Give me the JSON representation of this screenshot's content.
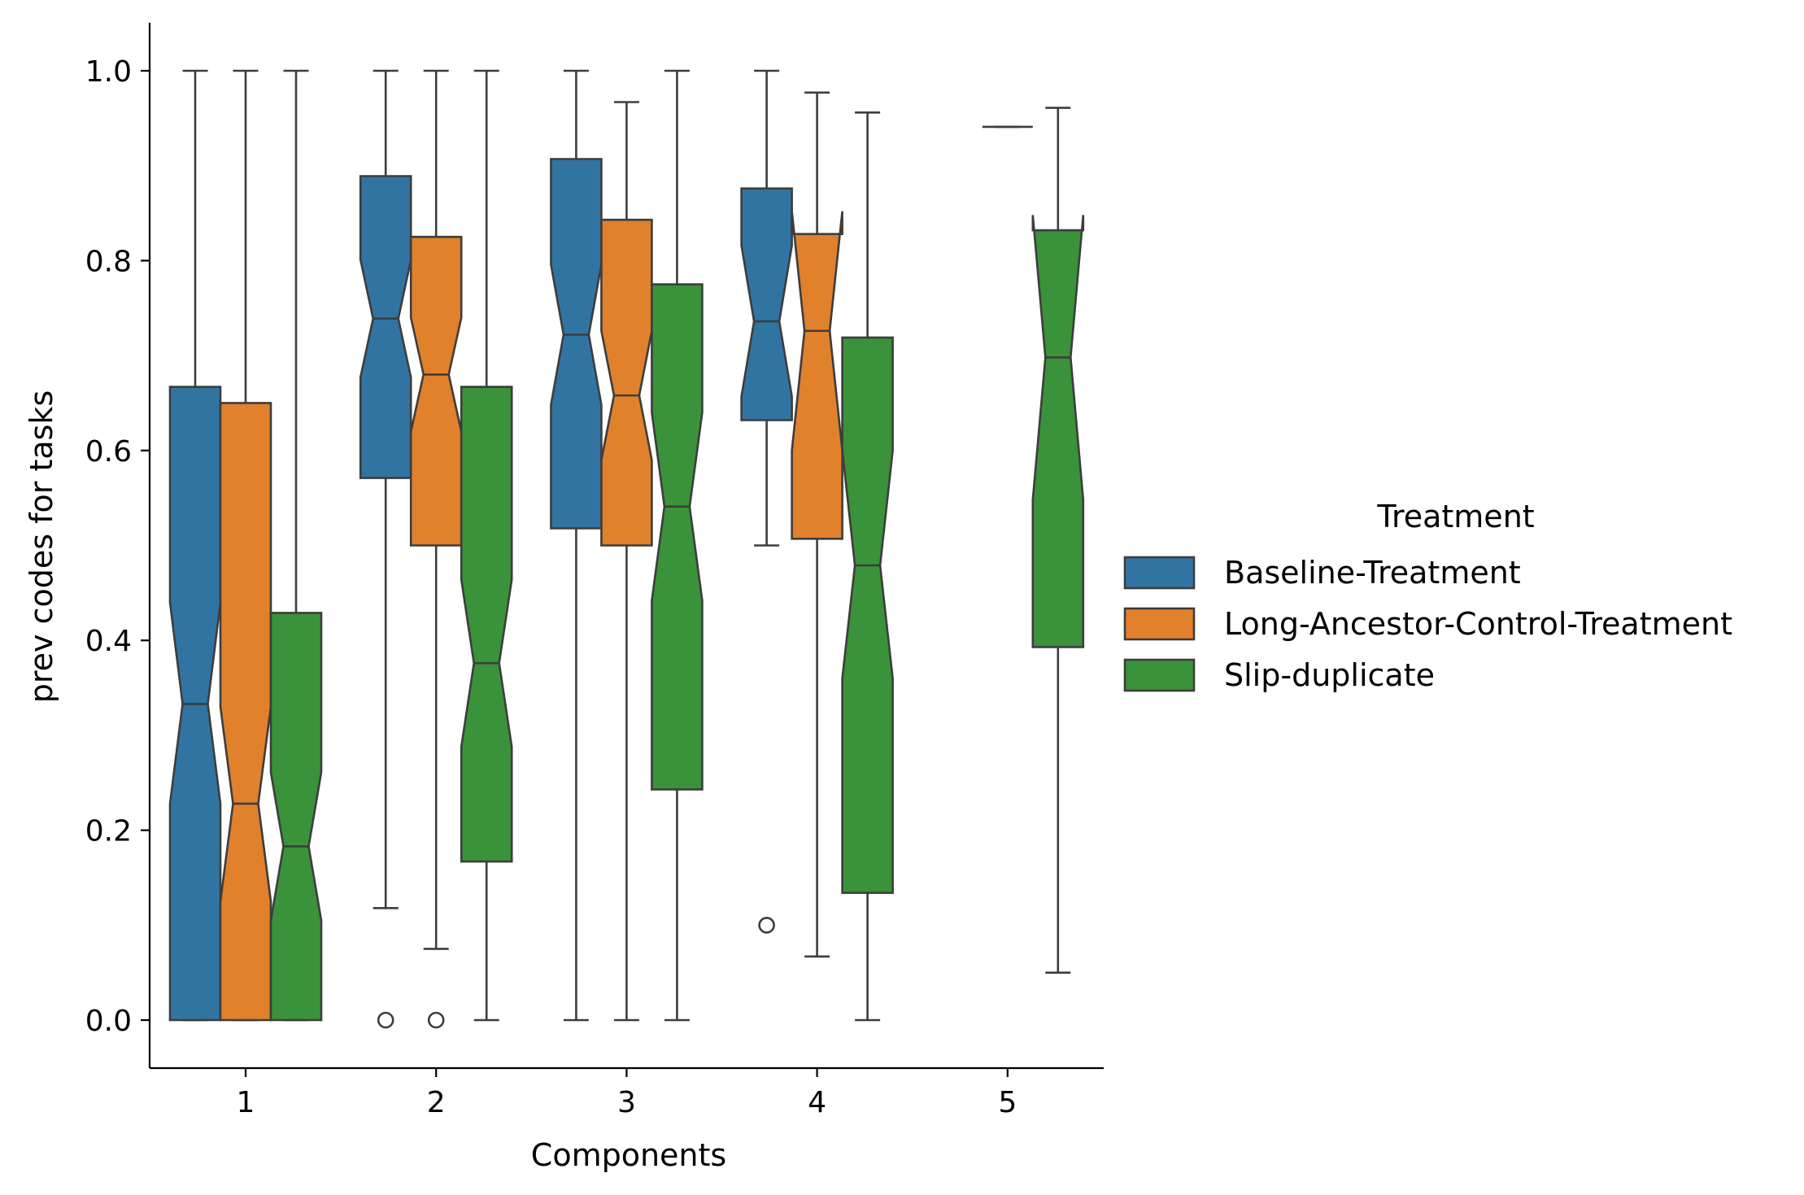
{
  "chart_data": {
    "type": "boxplot",
    "notched": true,
    "xlabel": "Components",
    "ylabel": "prev codes for tasks",
    "categories": [
      "1",
      "2",
      "3",
      "4",
      "5"
    ],
    "ylim": [
      -0.05,
      1.05
    ],
    "yticks": [
      0.0,
      0.2,
      0.4,
      0.6,
      0.8,
      1.0
    ],
    "ytick_labels": [
      "0.0",
      "0.2",
      "0.4",
      "0.6",
      "0.8",
      "1.0"
    ],
    "grid": false,
    "legend": {
      "title": "Treatment",
      "placement": "right"
    },
    "series": [
      {
        "name": "Baseline-Treatment",
        "color": "#3274a1",
        "boxes": [
          {
            "category": "1",
            "whislo": 0.0,
            "q1": 0.0,
            "med": 0.333,
            "q3": 0.667,
            "whishi": 1.0,
            "notch_lo": 0.228,
            "notch_hi": 0.44,
            "outliers": []
          },
          {
            "category": "2",
            "whislo": 0.118,
            "q1": 0.571,
            "med": 0.739,
            "q3": 0.889,
            "whishi": 1.0,
            "notch_lo": 0.677,
            "notch_hi": 0.801,
            "outliers": [
              0.0
            ]
          },
          {
            "category": "3",
            "whislo": 0.0,
            "q1": 0.518,
            "med": 0.722,
            "q3": 0.907,
            "whishi": 1.0,
            "notch_lo": 0.648,
            "notch_hi": 0.796,
            "outliers": []
          },
          {
            "category": "4",
            "whislo": 0.5,
            "q1": 0.632,
            "med": 0.736,
            "q3": 0.876,
            "whishi": 1.0,
            "notch_lo": 0.657,
            "notch_hi": 0.816,
            "outliers": [
              0.1
            ]
          },
          {
            "category": "5",
            "empty": true
          }
        ]
      },
      {
        "name": "Long-Ancestor-Control-Treatment",
        "color": "#e1812c",
        "boxes": [
          {
            "category": "1",
            "whislo": 0.0,
            "q1": 0.0,
            "med": 0.228,
            "q3": 0.65,
            "whishi": 1.0,
            "notch_lo": 0.125,
            "notch_hi": 0.33,
            "outliers": []
          },
          {
            "category": "2",
            "whislo": 0.075,
            "q1": 0.5,
            "med": 0.68,
            "q3": 0.825,
            "whishi": 1.0,
            "notch_lo": 0.62,
            "notch_hi": 0.74,
            "outliers": [
              0.0
            ]
          },
          {
            "category": "3",
            "whislo": 0.0,
            "q1": 0.5,
            "med": 0.658,
            "q3": 0.843,
            "whishi": 0.967,
            "notch_lo": 0.59,
            "notch_hi": 0.726,
            "outliers": []
          },
          {
            "category": "4",
            "whislo": 0.067,
            "q1": 0.507,
            "med": 0.726,
            "q3": 0.828,
            "whishi": 0.977,
            "notch_lo": 0.6,
            "notch_hi": 0.852,
            "outliers": []
          },
          {
            "category": "5",
            "whislo": 0.941,
            "q1": 0.941,
            "med": 0.941,
            "q3": 0.941,
            "whishi": 0.941,
            "notch_lo": 0.941,
            "notch_hi": 0.941,
            "outliers": []
          }
        ]
      },
      {
        "name": "Slip-duplicate",
        "color": "#3a923a",
        "boxes": [
          {
            "category": "1",
            "whislo": 0.0,
            "q1": 0.0,
            "med": 0.183,
            "q3": 0.429,
            "whishi": 1.0,
            "notch_lo": 0.105,
            "notch_hi": 0.261,
            "outliers": []
          },
          {
            "category": "2",
            "whislo": 0.0,
            "q1": 0.167,
            "med": 0.376,
            "q3": 0.667,
            "whishi": 1.0,
            "notch_lo": 0.288,
            "notch_hi": 0.464,
            "outliers": []
          },
          {
            "category": "3",
            "whislo": 0.0,
            "q1": 0.243,
            "med": 0.541,
            "q3": 0.775,
            "whishi": 1.0,
            "notch_lo": 0.442,
            "notch_hi": 0.64,
            "outliers": []
          },
          {
            "category": "4",
            "whislo": 0.0,
            "q1": 0.134,
            "med": 0.479,
            "q3": 0.719,
            "whishi": 0.956,
            "notch_lo": 0.36,
            "notch_hi": 0.6,
            "outliers": []
          },
          {
            "category": "5",
            "whislo": 0.05,
            "q1": 0.393,
            "med": 0.698,
            "q3": 0.832,
            "whishi": 0.961,
            "notch_lo": 0.548,
            "notch_hi": 0.848,
            "outliers": []
          }
        ]
      }
    ]
  }
}
